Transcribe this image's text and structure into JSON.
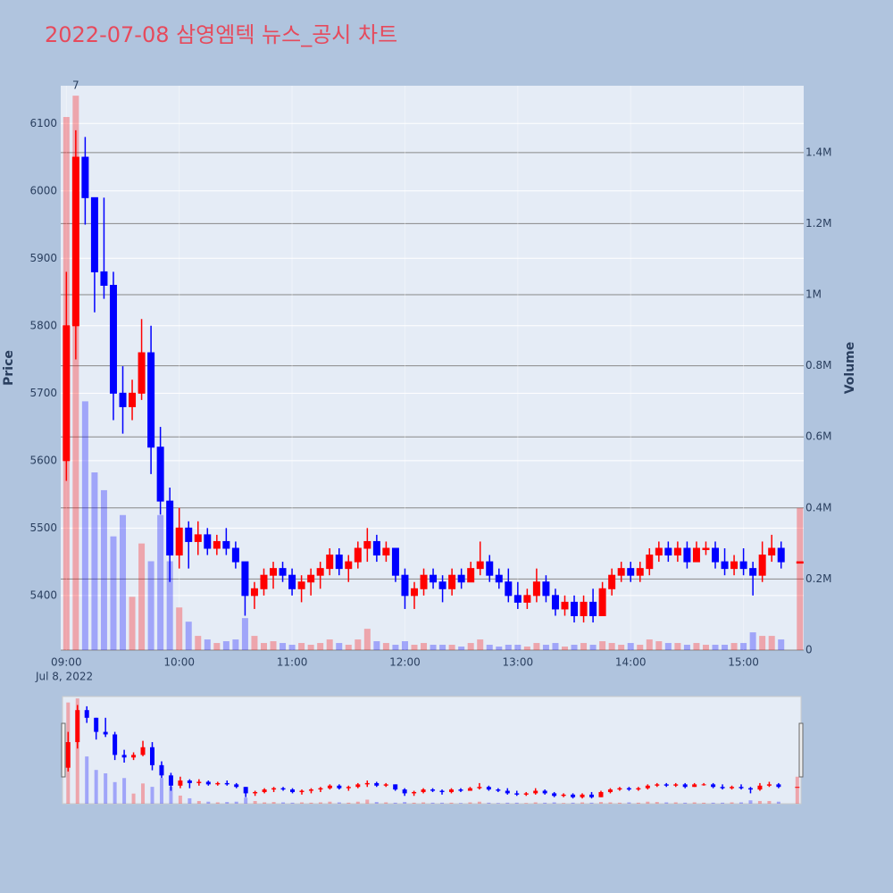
{
  "chart_data": {
    "type": "candlestick",
    "title": "2022-07-08 삼영엠텍 뉴스_공시 차트",
    "y_label": "Price",
    "y2_label": "Volume",
    "date_label": "Jul 8, 2022",
    "annotation": {
      "x": "2022-07-08 09:05",
      "text": "7"
    },
    "increasing_color": "#ff0000",
    "decreasing_color": "#0000ff",
    "x": [
      "2022-07-08 09:00",
      "2022-07-08 09:05",
      "2022-07-08 09:10",
      "2022-07-08 09:15",
      "2022-07-08 09:20",
      "2022-07-08 09:25",
      "2022-07-08 09:30",
      "2022-07-08 09:35",
      "2022-07-08 09:40",
      "2022-07-08 09:45",
      "2022-07-08 09:50",
      "2022-07-08 09:55",
      "2022-07-08 10:00",
      "2022-07-08 10:05",
      "2022-07-08 10:10",
      "2022-07-08 10:15",
      "2022-07-08 10:20",
      "2022-07-08 10:25",
      "2022-07-08 10:30",
      "2022-07-08 10:35",
      "2022-07-08 10:40",
      "2022-07-08 10:45",
      "2022-07-08 10:50",
      "2022-07-08 10:55",
      "2022-07-08 11:00",
      "2022-07-08 11:05",
      "2022-07-08 11:10",
      "2022-07-08 11:15",
      "2022-07-08 11:20",
      "2022-07-08 11:25",
      "2022-07-08 11:30",
      "2022-07-08 11:35",
      "2022-07-08 11:40",
      "2022-07-08 11:45",
      "2022-07-08 11:50",
      "2022-07-08 11:55",
      "2022-07-08 12:00",
      "2022-07-08 12:05",
      "2022-07-08 12:10",
      "2022-07-08 12:15",
      "2022-07-08 12:20",
      "2022-07-08 12:25",
      "2022-07-08 12:30",
      "2022-07-08 12:35",
      "2022-07-08 12:40",
      "2022-07-08 12:45",
      "2022-07-08 12:50",
      "2022-07-08 12:55",
      "2022-07-08 13:00",
      "2022-07-08 13:05",
      "2022-07-08 13:10",
      "2022-07-08 13:15",
      "2022-07-08 13:20",
      "2022-07-08 13:25",
      "2022-07-08 13:30",
      "2022-07-08 13:35",
      "2022-07-08 13:40",
      "2022-07-08 13:45",
      "2022-07-08 13:50",
      "2022-07-08 13:55",
      "2022-07-08 14:00",
      "2022-07-08 14:05",
      "2022-07-08 14:10",
      "2022-07-08 14:15",
      "2022-07-08 14:20",
      "2022-07-08 14:25",
      "2022-07-08 14:30",
      "2022-07-08 14:35",
      "2022-07-08 14:40",
      "2022-07-08 14:45",
      "2022-07-08 14:50",
      "2022-07-08 14:55",
      "2022-07-08 15:00",
      "2022-07-08 15:05",
      "2022-07-08 15:10",
      "2022-07-08 15:15",
      "2022-07-08 15:20",
      "2022-07-08 15:30"
    ],
    "open": [
      5600,
      5800,
      6050,
      5990,
      5880,
      5860,
      5700,
      5680,
      5700,
      5760,
      5620,
      5540,
      5460,
      5500,
      5480,
      5490,
      5470,
      5480,
      5470,
      5450,
      5400,
      5410,
      5430,
      5440,
      5430,
      5410,
      5420,
      5430,
      5440,
      5460,
      5440,
      5450,
      5470,
      5480,
      5460,
      5470,
      5430,
      5400,
      5410,
      5430,
      5420,
      5410,
      5430,
      5420,
      5440,
      5450,
      5430,
      5420,
      5400,
      5390,
      5400,
      5420,
      5400,
      5380,
      5390,
      5370,
      5390,
      5370,
      5410,
      5430,
      5440,
      5430,
      5440,
      5460,
      5470,
      5460,
      5470,
      5450,
      5470,
      5470,
      5450,
      5440,
      5450,
      5440,
      5430,
      5460,
      5470,
      5450
    ],
    "high": [
      5880,
      6090,
      6080,
      5990,
      5990,
      5880,
      5740,
      5720,
      5810,
      5800,
      5650,
      5560,
      5530,
      5510,
      5510,
      5500,
      5490,
      5500,
      5480,
      5450,
      5420,
      5440,
      5450,
      5450,
      5440,
      5430,
      5440,
      5450,
      5470,
      5470,
      5460,
      5480,
      5500,
      5490,
      5480,
      5470,
      5440,
      5420,
      5440,
      5440,
      5430,
      5440,
      5440,
      5450,
      5480,
      5460,
      5440,
      5440,
      5420,
      5410,
      5440,
      5430,
      5410,
      5400,
      5400,
      5400,
      5410,
      5420,
      5440,
      5450,
      5450,
      5450,
      5470,
      5480,
      5480,
      5480,
      5480,
      5480,
      5480,
      5480,
      5470,
      5460,
      5470,
      5450,
      5480,
      5490,
      5480,
      5450
    ],
    "low": [
      5570,
      5750,
      5950,
      5820,
      5840,
      5660,
      5640,
      5660,
      5690,
      5580,
      5520,
      5420,
      5440,
      5440,
      5460,
      5460,
      5460,
      5460,
      5440,
      5370,
      5380,
      5400,
      5410,
      5420,
      5400,
      5390,
      5400,
      5410,
      5430,
      5430,
      5420,
      5440,
      5450,
      5450,
      5450,
      5420,
      5380,
      5380,
      5400,
      5410,
      5390,
      5400,
      5410,
      5420,
      5430,
      5420,
      5410,
      5390,
      5380,
      5380,
      5390,
      5390,
      5370,
      5370,
      5360,
      5360,
      5360,
      5370,
      5400,
      5420,
      5420,
      5420,
      5430,
      5450,
      5450,
      5450,
      5440,
      5450,
      5460,
      5440,
      5430,
      5430,
      5430,
      5400,
      5420,
      5450,
      5440,
      5450
    ],
    "close": [
      5800,
      6050,
      5990,
      5880,
      5860,
      5700,
      5680,
      5700,
      5760,
      5620,
      5540,
      5460,
      5500,
      5480,
      5490,
      5470,
      5480,
      5470,
      5450,
      5400,
      5410,
      5430,
      5440,
      5430,
      5410,
      5420,
      5430,
      5440,
      5460,
      5440,
      5450,
      5470,
      5480,
      5460,
      5470,
      5430,
      5400,
      5410,
      5430,
      5420,
      5410,
      5430,
      5420,
      5440,
      5450,
      5430,
      5420,
      5400,
      5390,
      5400,
      5420,
      5400,
      5380,
      5390,
      5370,
      5390,
      5370,
      5410,
      5430,
      5440,
      5430,
      5440,
      5460,
      5470,
      5460,
      5470,
      5450,
      5470,
      5470,
      5450,
      5440,
      5450,
      5440,
      5430,
      5460,
      5470,
      5450,
      5450
    ],
    "volume": [
      1500000,
      1560000,
      700000,
      500000,
      450000,
      320000,
      380000,
      150000,
      300000,
      250000,
      380000,
      250000,
      120000,
      80000,
      40000,
      30000,
      20000,
      25000,
      30000,
      90000,
      40000,
      20000,
      25000,
      20000,
      15000,
      20000,
      15000,
      20000,
      30000,
      20000,
      15000,
      30000,
      60000,
      25000,
      20000,
      15000,
      25000,
      15000,
      20000,
      15000,
      15000,
      15000,
      10000,
      20000,
      30000,
      15000,
      10000,
      15000,
      15000,
      10000,
      20000,
      15000,
      20000,
      10000,
      15000,
      20000,
      15000,
      25000,
      20000,
      15000,
      20000,
      15000,
      30000,
      25000,
      20000,
      20000,
      15000,
      20000,
      15000,
      15000,
      15000,
      20000,
      20000,
      50000,
      40000,
      40000,
      30000,
      400000
    ],
    "xlim": [
      "2022-07-08 08:57",
      "2022-07-08 15:32"
    ],
    "xticks": [
      {
        "value": "2022-07-08 09:00",
        "label": "09:00"
      },
      {
        "value": "2022-07-08 10:00",
        "label": "10:00"
      },
      {
        "value": "2022-07-08 11:00",
        "label": "11:00"
      },
      {
        "value": "2022-07-08 12:00",
        "label": "12:00"
      },
      {
        "value": "2022-07-08 13:00",
        "label": "13:00"
      },
      {
        "value": "2022-07-08 14:00",
        "label": "14:00"
      },
      {
        "value": "2022-07-08 15:00",
        "label": "15:00"
      }
    ],
    "ylim": [
      5319,
      6156
    ],
    "yticks": [
      5400,
      5500,
      5600,
      5700,
      5800,
      5900,
      6000,
      6100
    ],
    "y2lim": [
      0,
      1588000
    ],
    "y2ticks": [
      0,
      {
        "value": 200000,
        "label": "0.2M"
      },
      {
        "value": 400000,
        "label": "0.4M"
      },
      {
        "value": 600000,
        "label": "0.6M"
      },
      {
        "value": 800000,
        "label": "0.8M"
      },
      {
        "value": 1000000,
        "label": "1M"
      },
      {
        "value": 1200000,
        "label": "1.2M"
      },
      {
        "value": 1400000,
        "label": "1.4M"
      }
    ]
  }
}
